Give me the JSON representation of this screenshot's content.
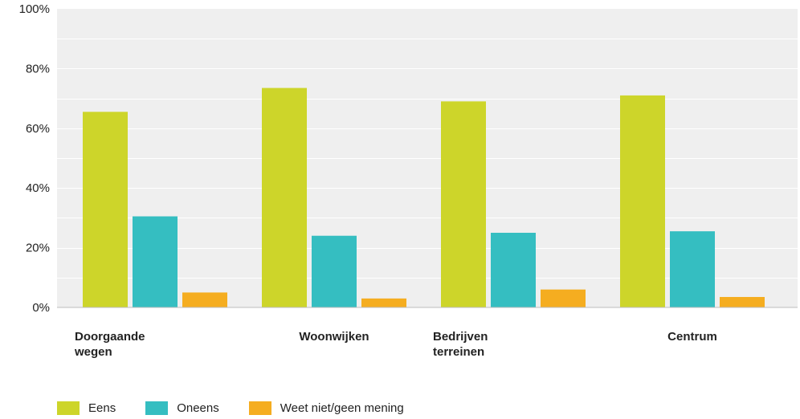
{
  "chart_data": {
    "type": "bar",
    "categories": [
      [
        "Doorgaande",
        "wegen"
      ],
      [
        "Woonwijken"
      ],
      [
        "Bedrijven",
        "terreinen"
      ],
      [
        "Centrum"
      ]
    ],
    "series": [
      {
        "name": "Eens",
        "color": "#cdd52a",
        "values": [
          65.5,
          73.5,
          69,
          71
        ]
      },
      {
        "name": "Oneens",
        "color": "#35bec1",
        "values": [
          30.5,
          24,
          25,
          25.5
        ]
      },
      {
        "name": "Weet niet/geen mening",
        "color": "#f5ad20",
        "values": [
          5,
          3,
          6,
          3.5
        ]
      }
    ],
    "yticks": [
      "0%",
      "20%",
      "40%",
      "60%",
      "80%",
      "100%"
    ],
    "ylim": [
      0,
      100
    ],
    "grid": true,
    "legend_position": "bottom-left",
    "plot_background": "#efefef"
  }
}
